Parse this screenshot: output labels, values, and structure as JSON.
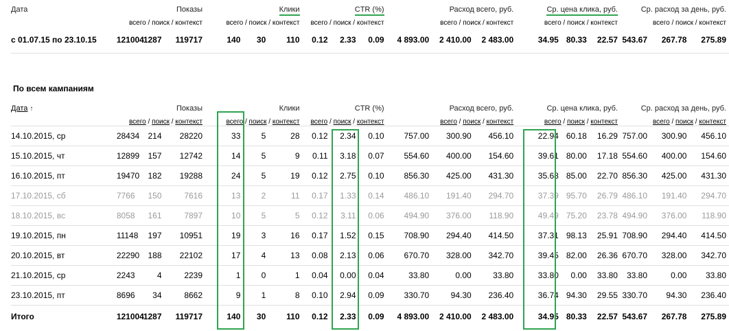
{
  "summary": {
    "header": {
      "date": "Дата",
      "shows": "Показы",
      "clicks": "Клики",
      "ctr": "CTR (%)",
      "spend": "Расход всего, руб.",
      "cpc": "Ср. цена клика, руб.",
      "daily": "Ср. расход за день, руб."
    },
    "sub": {
      "total": "всего",
      "search": "поиск",
      "context": "контекст"
    },
    "row": {
      "period": "с 01.07.15 по 23.10.15",
      "values": [
        "121004",
        "1287",
        "119717",
        "140",
        "30",
        "110",
        "0.12",
        "2.33",
        "0.09",
        "4 893.00",
        "2 410.00",
        "2 483.00",
        "34.95",
        "80.33",
        "22.57",
        "543.67",
        "267.78",
        "275.89"
      ]
    }
  },
  "campaigns": {
    "title": "По всем кампаниям",
    "header": {
      "date": "Дата",
      "sort_arrow": "↑",
      "shows": "Показы",
      "clicks": "Клики",
      "ctr": "CTR (%)",
      "spend": "Расход всего, руб.",
      "cpc": "Ср. цена клика, руб.",
      "daily": "Ср. расход за день, руб."
    },
    "rows": [
      {
        "date": "14.10.2015, ср",
        "weekend": false,
        "values": [
          "28434",
          "214",
          "28220",
          "33",
          "5",
          "28",
          "0.12",
          "2.34",
          "0.10",
          "757.00",
          "300.90",
          "456.10",
          "22.94",
          "60.18",
          "16.29",
          "757.00",
          "300.90",
          "456.10"
        ]
      },
      {
        "date": "15.10.2015, чт",
        "weekend": false,
        "values": [
          "12899",
          "157",
          "12742",
          "14",
          "5",
          "9",
          "0.11",
          "3.18",
          "0.07",
          "554.60",
          "400.00",
          "154.60",
          "39.61",
          "80.00",
          "17.18",
          "554.60",
          "400.00",
          "154.60"
        ]
      },
      {
        "date": "16.10.2015, пт",
        "weekend": false,
        "values": [
          "19470",
          "182",
          "19288",
          "24",
          "5",
          "19",
          "0.12",
          "2.75",
          "0.10",
          "856.30",
          "425.00",
          "431.30",
          "35.68",
          "85.00",
          "22.70",
          "856.30",
          "425.00",
          "431.30"
        ]
      },
      {
        "date": "17.10.2015, сб",
        "weekend": true,
        "values": [
          "7766",
          "150",
          "7616",
          "13",
          "2",
          "11",
          "0.17",
          "1.33",
          "0.14",
          "486.10",
          "191.40",
          "294.70",
          "37.39",
          "95.70",
          "26.79",
          "486.10",
          "191.40",
          "294.70"
        ]
      },
      {
        "date": "18.10.2015, вс",
        "weekend": true,
        "values": [
          "8058",
          "161",
          "7897",
          "10",
          "5",
          "5",
          "0.12",
          "3.11",
          "0.06",
          "494.90",
          "376.00",
          "118.90",
          "49.49",
          "75.20",
          "23.78",
          "494.90",
          "376.00",
          "118.90"
        ]
      },
      {
        "date": "19.10.2015, пн",
        "weekend": false,
        "values": [
          "11148",
          "197",
          "10951",
          "19",
          "3",
          "16",
          "0.17",
          "1.52",
          "0.15",
          "708.90",
          "294.40",
          "414.50",
          "37.31",
          "98.13",
          "25.91",
          "708.90",
          "294.40",
          "414.50"
        ]
      },
      {
        "date": "20.10.2015, вт",
        "weekend": false,
        "values": [
          "22290",
          "188",
          "22102",
          "17",
          "4",
          "13",
          "0.08",
          "2.13",
          "0.06",
          "670.70",
          "328.00",
          "342.70",
          "39.45",
          "82.00",
          "26.36",
          "670.70",
          "328.00",
          "342.70"
        ]
      },
      {
        "date": "21.10.2015, ср",
        "weekend": false,
        "values": [
          "2243",
          "4",
          "2239",
          "1",
          "0",
          "1",
          "0.04",
          "0.00",
          "0.04",
          "33.80",
          "0.00",
          "33.80",
          "33.80",
          "0.00",
          "33.80",
          "33.80",
          "0.00",
          "33.80"
        ]
      },
      {
        "date": "23.10.2015, пт",
        "weekend": false,
        "values": [
          "8696",
          "34",
          "8662",
          "9",
          "1",
          "8",
          "0.10",
          "2.94",
          "0.09",
          "330.70",
          "94.30",
          "236.40",
          "36.74",
          "94.30",
          "29.55",
          "330.70",
          "94.30",
          "236.40"
        ]
      }
    ],
    "total": {
      "label": "Итого",
      "values": [
        "121004",
        "1287",
        "119717",
        "140",
        "30",
        "110",
        "0.12",
        "2.33",
        "0.09",
        "4 893.00",
        "2 410.00",
        "2 483.00",
        "34.95",
        "80.33",
        "22.57",
        "543.67",
        "267.78",
        "275.89"
      ]
    }
  },
  "accent_color": "#2ea44f"
}
